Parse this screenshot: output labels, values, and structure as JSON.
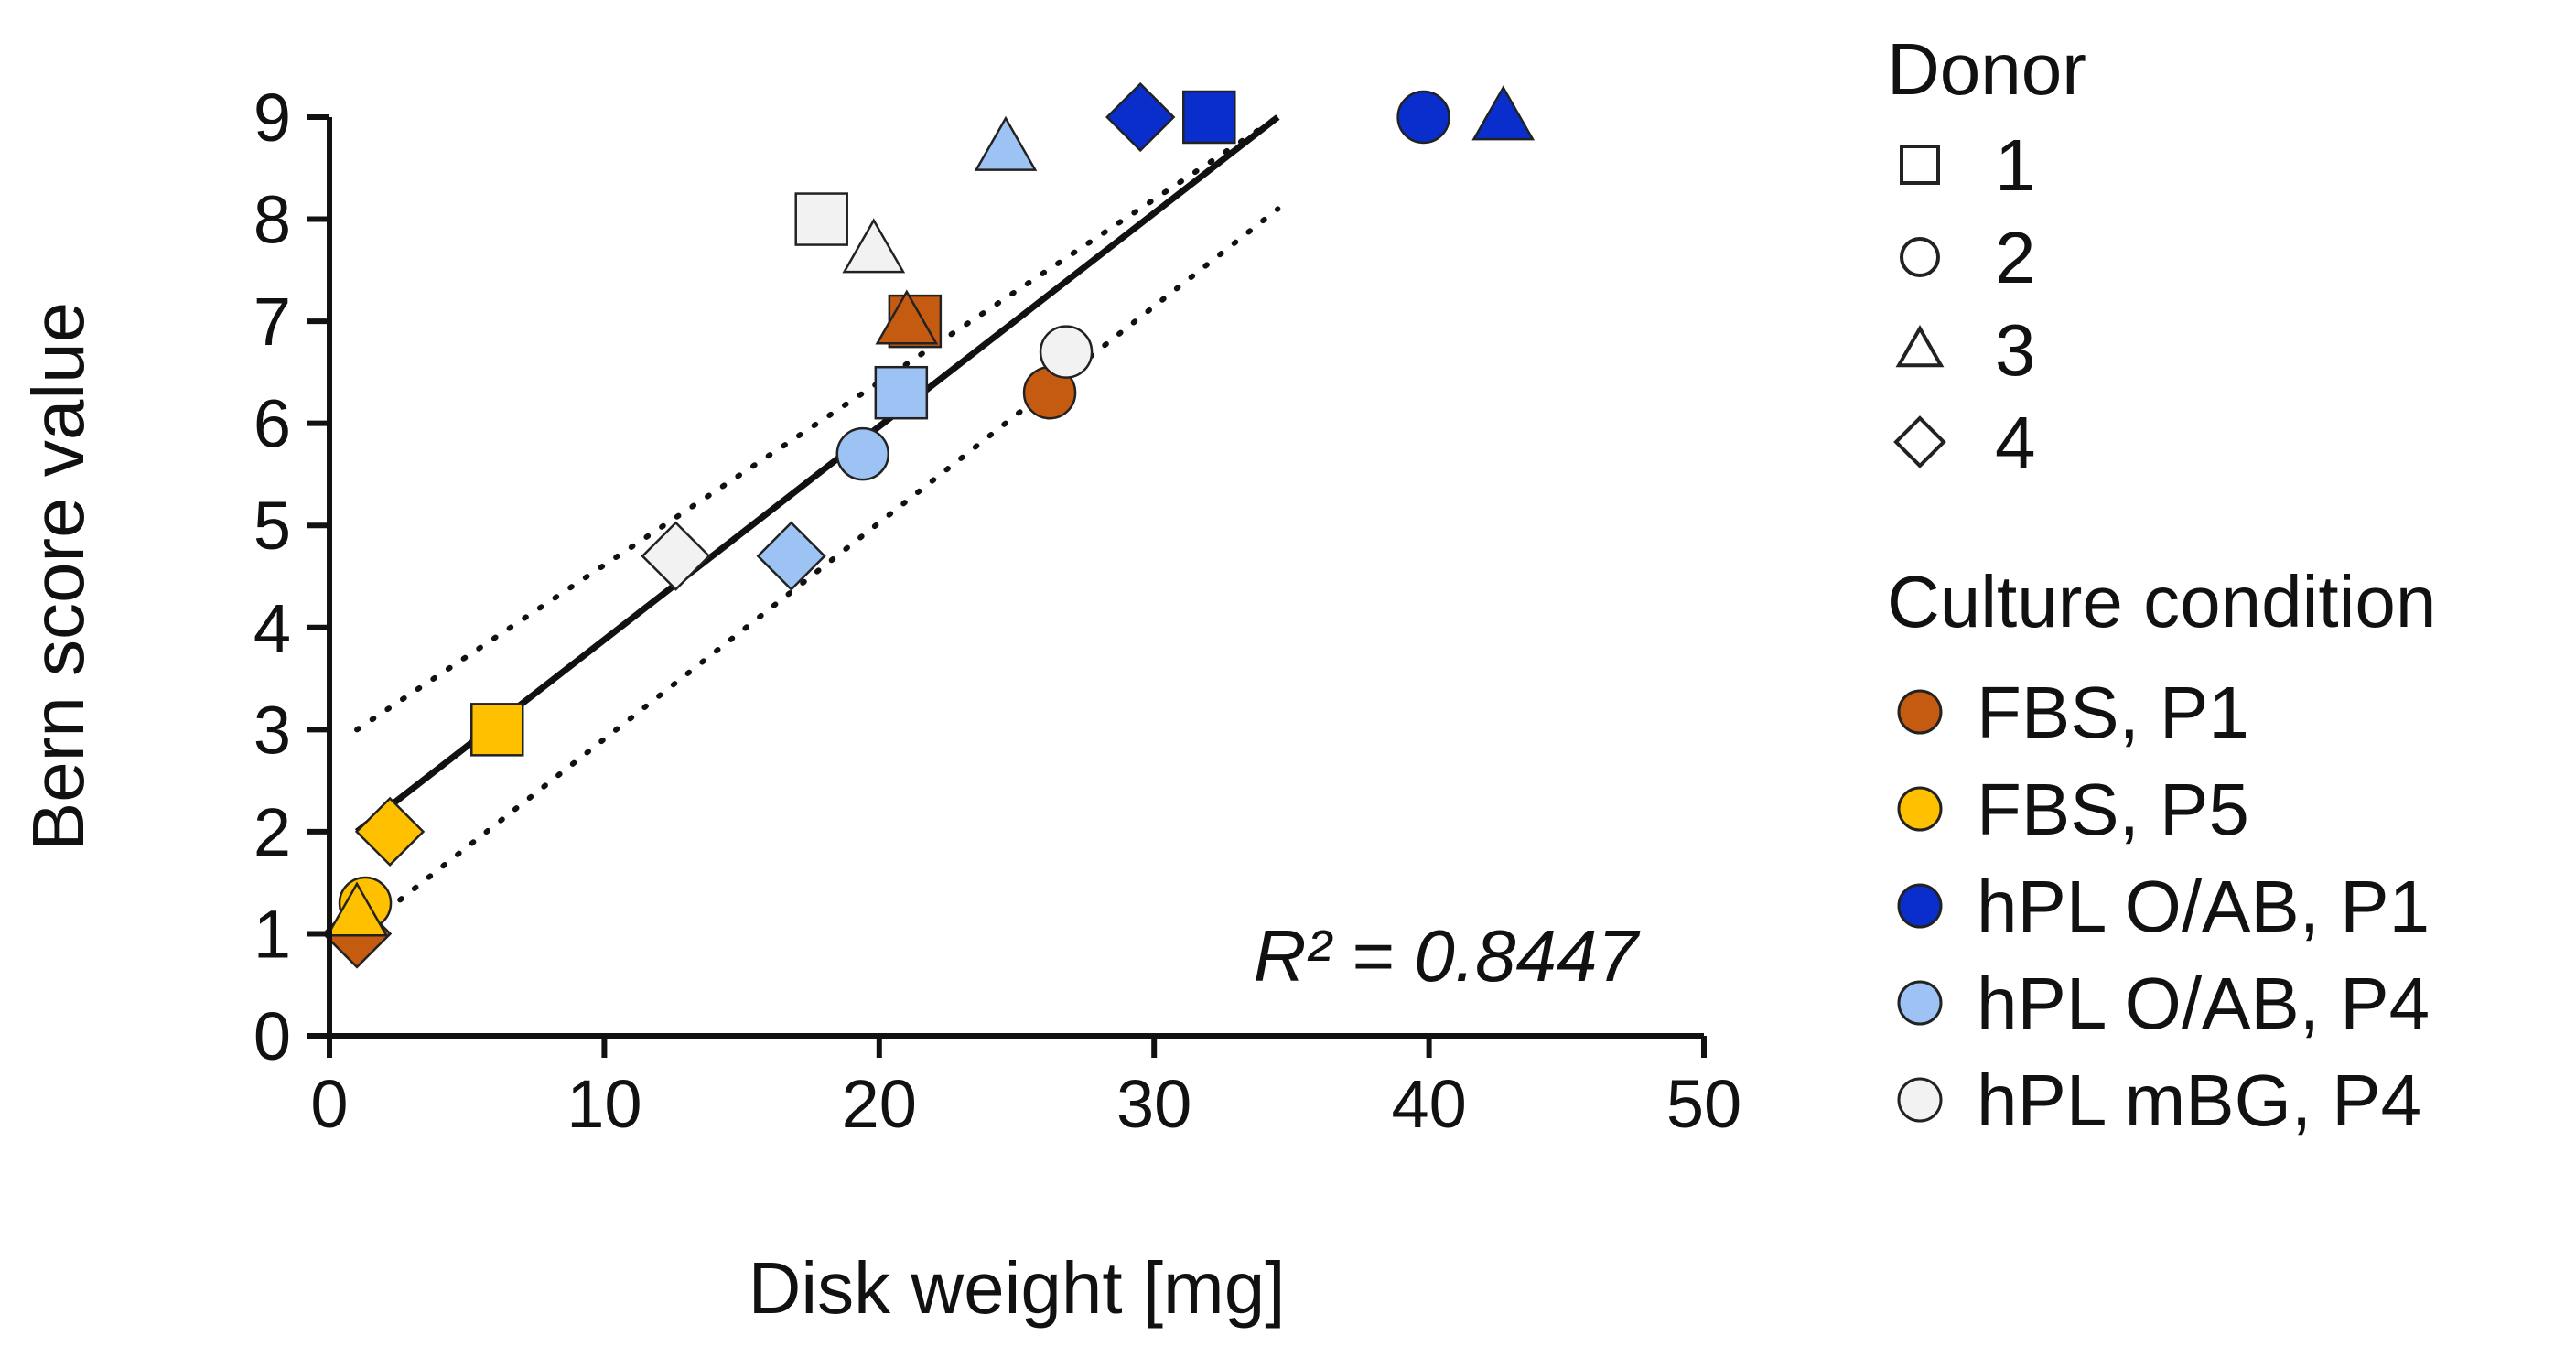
{
  "chart_data": {
    "type": "scatter",
    "xlabel": "Disk weight [mg]",
    "ylabel": "Bern score value",
    "xlim": [
      0,
      50
    ],
    "ylim": [
      0,
      9
    ],
    "x_ticks": [
      0,
      10,
      20,
      30,
      40,
      50
    ],
    "y_ticks": [
      0,
      1,
      2,
      3,
      4,
      5,
      6,
      7,
      8,
      9
    ],
    "annotation": "R² = 0.8447",
    "legend_position": "right",
    "donor_legend": {
      "title": "Donor",
      "items": [
        {
          "label": "1",
          "shape": "square"
        },
        {
          "label": "2",
          "shape": "circle"
        },
        {
          "label": "3",
          "shape": "triangle"
        },
        {
          "label": "4",
          "shape": "diamond"
        }
      ]
    },
    "condition_legend": {
      "title": "Culture condition",
      "items": [
        {
          "label": "FBS, P1",
          "color": "#C55A11"
        },
        {
          "label": "FBS, P5",
          "color": "#FFC000"
        },
        {
          "label": "hPL O/AB, P1",
          "color": "#0A2ECC"
        },
        {
          "label": "hPL O/AB, P4",
          "color": "#9DC3F5"
        },
        {
          "label": "hPL mBG, P4",
          "color": "#F2F2F2"
        }
      ]
    },
    "points": [
      {
        "x": 1.0,
        "y": 1.0,
        "donor": "4",
        "condition": "FBS, P1"
      },
      {
        "x": 21.3,
        "y": 7.0,
        "donor": "1",
        "condition": "FBS, P1"
      },
      {
        "x": 21.0,
        "y": 7.0,
        "donor": "3",
        "condition": "FBS, P1"
      },
      {
        "x": 26.2,
        "y": 6.3,
        "donor": "2",
        "condition": "FBS, P1"
      },
      {
        "x": 1.3,
        "y": 1.3,
        "donor": "2",
        "condition": "FBS, P5"
      },
      {
        "x": 1.0,
        "y": 1.2,
        "donor": "3",
        "condition": "FBS, P5"
      },
      {
        "x": 2.2,
        "y": 2.0,
        "donor": "4",
        "condition": "FBS, P5"
      },
      {
        "x": 6.1,
        "y": 3.0,
        "donor": "1",
        "condition": "FBS, P5"
      },
      {
        "x": 29.5,
        "y": 9.0,
        "donor": "4",
        "condition": "hPL O/AB, P1"
      },
      {
        "x": 32.0,
        "y": 9.0,
        "donor": "1",
        "condition": "hPL O/AB, P1"
      },
      {
        "x": 39.8,
        "y": 9.0,
        "donor": "2",
        "condition": "hPL O/AB, P1"
      },
      {
        "x": 42.7,
        "y": 9.0,
        "donor": "3",
        "condition": "hPL O/AB, P1"
      },
      {
        "x": 16.8,
        "y": 4.7,
        "donor": "4",
        "condition": "hPL O/AB, P4"
      },
      {
        "x": 19.4,
        "y": 5.7,
        "donor": "2",
        "condition": "hPL O/AB, P4"
      },
      {
        "x": 20.8,
        "y": 6.3,
        "donor": "1",
        "condition": "hPL O/AB, P4"
      },
      {
        "x": 24.6,
        "y": 8.7,
        "donor": "3",
        "condition": "hPL O/AB, P4"
      },
      {
        "x": 12.6,
        "y": 4.7,
        "donor": "4",
        "condition": "hPL mBG, P4"
      },
      {
        "x": 17.9,
        "y": 8.0,
        "donor": "1",
        "condition": "hPL mBG, P4"
      },
      {
        "x": 19.8,
        "y": 7.7,
        "donor": "3",
        "condition": "hPL mBG, P4"
      },
      {
        "x": 26.8,
        "y": 6.7,
        "donor": "2",
        "condition": "hPL mBG, P4"
      }
    ],
    "fit_line": {
      "x": [
        1.0,
        34.5
      ],
      "y": [
        2.0,
        9.0
      ]
    },
    "confidence_band": {
      "upper": {
        "x": [
          1.0,
          34.5
        ],
        "y": [
          3.0,
          9.0
        ]
      },
      "lower": {
        "x": [
          1.0,
          34.5
        ],
        "y": [
          1.0,
          8.1
        ]
      }
    }
  }
}
